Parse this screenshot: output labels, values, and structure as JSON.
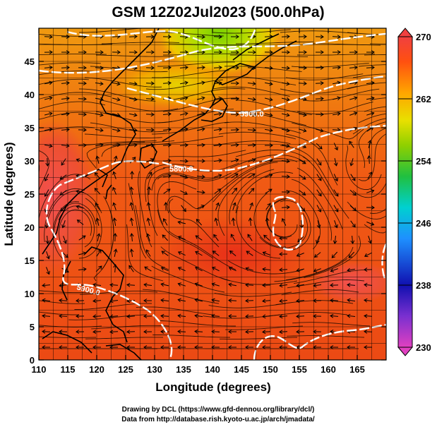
{
  "title": "GSM 12Z02Jul2023 (500.0hPa)",
  "x_axis": {
    "label": "Longitude (degrees)",
    "range": [
      110,
      170
    ],
    "ticks": [
      "110",
      "115",
      "120",
      "125",
      "130",
      "135",
      "140",
      "145",
      "150",
      "155",
      "160",
      "165"
    ]
  },
  "y_axis": {
    "label": "Latitude  (degrees)",
    "range": [
      0,
      50
    ],
    "ticks": [
      "0",
      "5",
      "10",
      "15",
      "20",
      "25",
      "30",
      "35",
      "40",
      "45"
    ]
  },
  "colorbar": {
    "ticks": [
      "230",
      "238",
      "246",
      "254",
      "262",
      "270"
    ],
    "range": [
      230,
      270
    ],
    "colors": [
      "#e040c0",
      "#7a30d0",
      "#1010b0",
      "#1e90ff",
      "#00d0d0",
      "#20c040",
      "#8fd000",
      "#e8e000",
      "#ffa500",
      "#ff5010",
      "#f04040"
    ]
  },
  "contour_labels": [
    "5900.0",
    "5800.0",
    "5900.0"
  ],
  "credits": [
    "Drawing by DCL (https://www.gfd-dennou.org/library/dcl/)",
    "Data from http://database.rish.kyoto-u.ac.jp/arch/jmadata/"
  ]
}
